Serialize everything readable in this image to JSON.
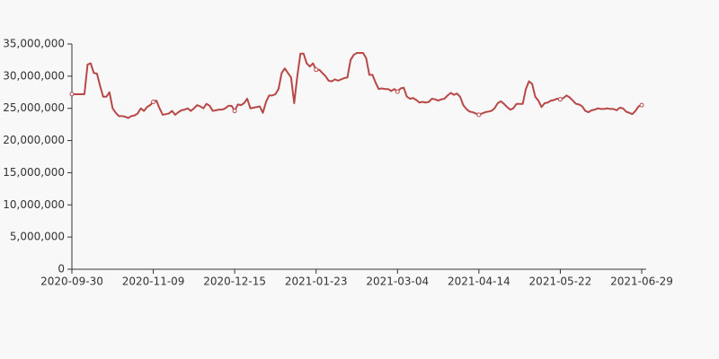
{
  "chart_data": {
    "type": "line",
    "categories": [
      "2020-09-30",
      null,
      null,
      null,
      null,
      null,
      null,
      null,
      null,
      null,
      null,
      null,
      null,
      null,
      null,
      null,
      null,
      null,
      null,
      null,
      null,
      null,
      null,
      null,
      null,
      null,
      "2020-11-09",
      null,
      null,
      null,
      null,
      null,
      null,
      null,
      null,
      null,
      null,
      null,
      null,
      null,
      null,
      null,
      null,
      null,
      null,
      null,
      null,
      null,
      null,
      null,
      null,
      null,
      "2020-12-15",
      null,
      null,
      null,
      null,
      null,
      null,
      null,
      null,
      null,
      null,
      null,
      null,
      null,
      null,
      null,
      null,
      null,
      null,
      null,
      null,
      null,
      null,
      null,
      null,
      null,
      "2021-01-23",
      null,
      null,
      null,
      null,
      null,
      null,
      null,
      null,
      null,
      null,
      null,
      null,
      null,
      null,
      null,
      null,
      null,
      null,
      null,
      null,
      null,
      null,
      null,
      null,
      null,
      "2021-03-04",
      null,
      null,
      null,
      null,
      null,
      null,
      null,
      null,
      null,
      null,
      null,
      null,
      null,
      null,
      null,
      null,
      null,
      null,
      null,
      null,
      null,
      null,
      null,
      null,
      null,
      "2021-04-14",
      null,
      null,
      null,
      null,
      null,
      null,
      null,
      null,
      null,
      null,
      null,
      null,
      null,
      null,
      null,
      null,
      null,
      null,
      null,
      null,
      null,
      null,
      null,
      null,
      null,
      "2021-05-22",
      null,
      null,
      null,
      null,
      null,
      null,
      null,
      null,
      null,
      null,
      null,
      null,
      null,
      null,
      null,
      null,
      null,
      null,
      null,
      null,
      null,
      null,
      null,
      null,
      null,
      "2021-06-29"
    ],
    "series": [
      {
        "color": "#b84848",
        "values": [
          27200000,
          27200000,
          27200000,
          27200000,
          27200000,
          31800000,
          32000000,
          30500000,
          30400000,
          28500000,
          26800000,
          26800000,
          27500000,
          25000000,
          24300000,
          23800000,
          23800000,
          23700000,
          23500000,
          23800000,
          23900000,
          24200000,
          25000000,
          24600000,
          25200000,
          25500000,
          26000000,
          26200000,
          25000000,
          24000000,
          24100000,
          24200000,
          24600000,
          24000000,
          24400000,
          24700000,
          24800000,
          25000000,
          24600000,
          25000000,
          25500000,
          25300000,
          25000000,
          25700000,
          25400000,
          24600000,
          24700000,
          24800000,
          24800000,
          25000000,
          25400000,
          25400000,
          24600000,
          25600000,
          25500000,
          25800000,
          26500000,
          25000000,
          25100000,
          25200000,
          25300000,
          24300000,
          26000000,
          27000000,
          27000000,
          27200000,
          28000000,
          30500000,
          31200000,
          30500000,
          29800000,
          25800000,
          30000000,
          33500000,
          33500000,
          32000000,
          31500000,
          32000000,
          31000000,
          31000000,
          30500000,
          30000000,
          29300000,
          29200000,
          29500000,
          29300000,
          29500000,
          29700000,
          29800000,
          32500000,
          33300000,
          33600000,
          33600000,
          33600000,
          32800000,
          30200000,
          30200000,
          29000000,
          28000000,
          28100000,
          28000000,
          28000000,
          27700000,
          28000000,
          27600000,
          28100000,
          28200000,
          26800000,
          26500000,
          26600000,
          26300000,
          25900000,
          26000000,
          25900000,
          26000000,
          26500000,
          26400000,
          26200000,
          26400000,
          26500000,
          27000000,
          27400000,
          27100000,
          27300000,
          26800000,
          25500000,
          24900000,
          24500000,
          24400000,
          24200000,
          24000000,
          24200000,
          24400000,
          24500000,
          24600000,
          25000000,
          25800000,
          26100000,
          25700000,
          25200000,
          24800000,
          25000000,
          25700000,
          25700000,
          25700000,
          28000000,
          29200000,
          28800000,
          26800000,
          26200000,
          25200000,
          25800000,
          25900000,
          26200000,
          26300000,
          26500000,
          26400000,
          26600000,
          27000000,
          26700000,
          26200000,
          25700000,
          25600000,
          25300000,
          24600000,
          24400000,
          24700000,
          24800000,
          25000000,
          24900000,
          24900000,
          25000000,
          24900000,
          24900000,
          24700000,
          25100000,
          25000000,
          24500000,
          24300000,
          24100000,
          24600000,
          25300000,
          25500000
        ]
      }
    ],
    "ylim": [
      0,
      35000000
    ],
    "yticks": [
      0,
      {
        "value": 5000000,
        "label": "5,000,000"
      },
      {
        "value": 10000000,
        "label": "10,000,000"
      },
      {
        "value": 15000000,
        "label": "15,000,000"
      },
      {
        "value": 20000000,
        "label": "20,000,000"
      },
      {
        "value": 25000000,
        "label": "25,000,000"
      },
      {
        "value": 30000000,
        "label": "30,000,000"
      },
      {
        "value": 35000000,
        "label": "35,000,000"
      }
    ],
    "grid": false
  }
}
